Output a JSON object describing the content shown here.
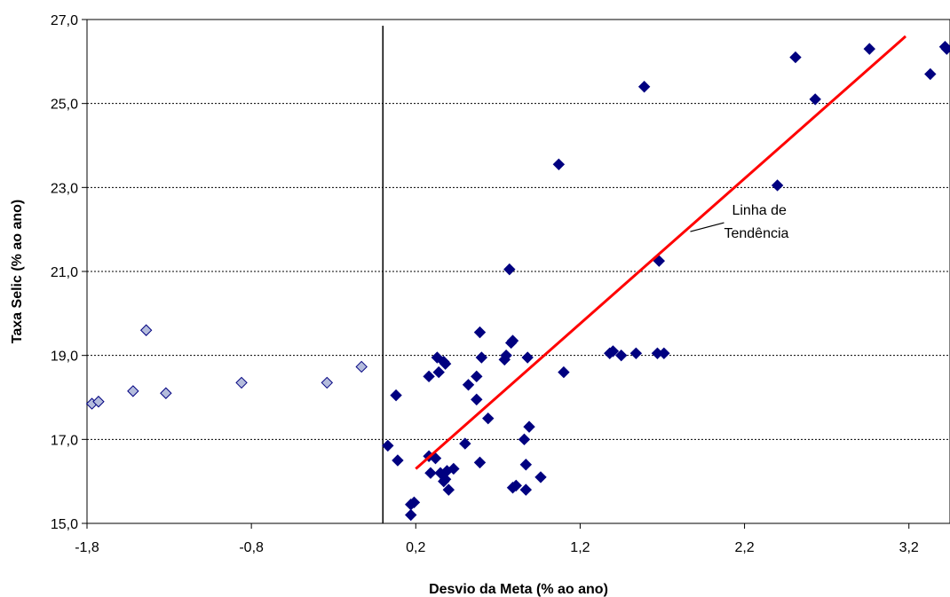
{
  "chart_data": {
    "type": "scatter",
    "xlabel": "Desvio da Meta (% ao ano)",
    "ylabel": "Taxa Selic (% ao ano)",
    "xlim": [
      -1.8,
      3.45
    ],
    "ylim": [
      15.0,
      27.0
    ],
    "x_ticks": [
      -1.8,
      -0.8,
      0.2,
      1.2,
      2.2,
      3.2
    ],
    "x_tick_labels": [
      "-1,8",
      "-0,8",
      "0,2",
      "1,2",
      "2,2",
      "3,2"
    ],
    "y_ticks": [
      15.0,
      17.0,
      19.0,
      21.0,
      23.0,
      25.0,
      27.0
    ],
    "y_tick_labels": [
      "15,0",
      "17,0",
      "19,0",
      "21,0",
      "23,0",
      "25,0",
      "27,0"
    ],
    "grid": "horizontal dashed",
    "vertical_reference_x": 0.0,
    "series": [
      {
        "marker": "diamond",
        "color": "#b4bcdc",
        "stroke": "#000080",
        "points": [
          [
            -1.77,
            17.85
          ],
          [
            -1.73,
            17.9
          ],
          [
            -1.52,
            18.15
          ],
          [
            -1.44,
            19.6
          ],
          [
            -1.32,
            18.1
          ],
          [
            -0.86,
            18.35
          ],
          [
            -0.34,
            18.35
          ],
          [
            -0.13,
            18.73
          ]
        ]
      },
      {
        "marker": "diamond",
        "color": "#000080",
        "stroke": "#000080",
        "points": [
          [
            0.03,
            16.85
          ],
          [
            0.08,
            18.05
          ],
          [
            0.09,
            16.5
          ],
          [
            0.17,
            15.45
          ],
          [
            0.19,
            15.5
          ],
          [
            0.17,
            15.2
          ],
          [
            0.28,
            18.5
          ],
          [
            0.28,
            16.6
          ],
          [
            0.29,
            16.2
          ],
          [
            0.32,
            16.55
          ],
          [
            0.33,
            18.95
          ],
          [
            0.34,
            18.6
          ],
          [
            0.35,
            16.2
          ],
          [
            0.37,
            18.85
          ],
          [
            0.37,
            16.0
          ],
          [
            0.38,
            18.8
          ],
          [
            0.38,
            16.05
          ],
          [
            0.39,
            16.25
          ],
          [
            0.4,
            15.8
          ],
          [
            0.43,
            16.3
          ],
          [
            0.5,
            16.9
          ],
          [
            0.52,
            18.3
          ],
          [
            0.57,
            18.5
          ],
          [
            0.57,
            17.95
          ],
          [
            0.59,
            16.45
          ],
          [
            0.59,
            19.55
          ],
          [
            0.6,
            18.95
          ],
          [
            0.64,
            17.5
          ],
          [
            0.74,
            18.9
          ],
          [
            0.75,
            19.0
          ],
          [
            0.77,
            21.05
          ],
          [
            0.78,
            19.3
          ],
          [
            0.79,
            19.35
          ],
          [
            0.79,
            15.85
          ],
          [
            0.81,
            15.9
          ],
          [
            0.86,
            17.0
          ],
          [
            0.87,
            16.4
          ],
          [
            0.87,
            15.8
          ],
          [
            0.88,
            18.95
          ],
          [
            0.89,
            17.3
          ],
          [
            0.96,
            16.1
          ],
          [
            1.07,
            23.55
          ],
          [
            1.1,
            18.6
          ],
          [
            1.38,
            19.05
          ],
          [
            1.4,
            19.1
          ],
          [
            1.45,
            19.0
          ],
          [
            1.54,
            19.05
          ],
          [
            1.59,
            25.4
          ],
          [
            1.67,
            19.05
          ],
          [
            1.68,
            21.25
          ],
          [
            1.71,
            19.05
          ],
          [
            2.4,
            23.05
          ],
          [
            2.51,
            26.1
          ],
          [
            2.63,
            25.1
          ],
          [
            2.96,
            26.3
          ],
          [
            3.33,
            25.7
          ],
          [
            3.42,
            26.35
          ],
          [
            3.43,
            26.3
          ]
        ]
      }
    ],
    "trend_line": {
      "color": "#ff0000",
      "from": [
        0.2,
        16.3
      ],
      "to": [
        3.18,
        26.6
      ]
    },
    "annotations": [
      {
        "text_lines": [
          "Linha de",
          "Tendência"
        ],
        "points_to": [
          1.87,
          21.95
        ]
      }
    ]
  }
}
